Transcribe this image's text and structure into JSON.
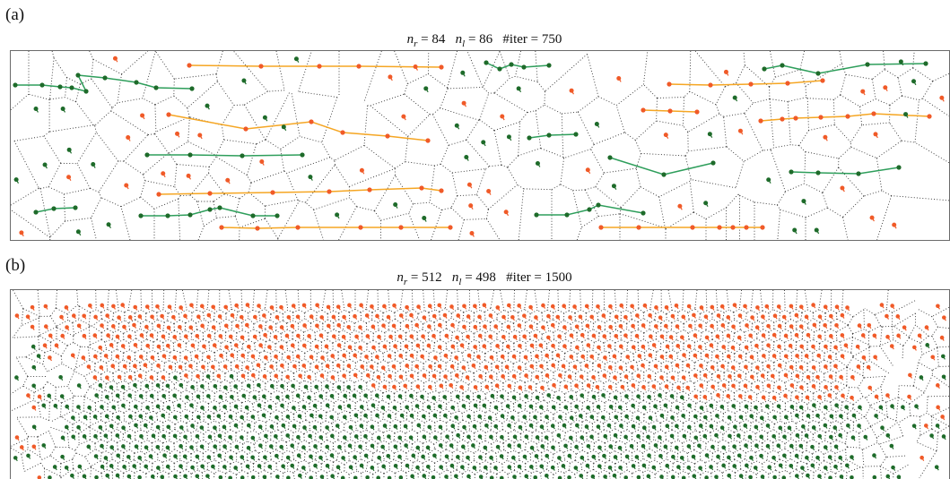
{
  "colors": {
    "right_particle": "#f05a28",
    "left_particle": "#1e6b2a",
    "right_chain": "#f5a623",
    "left_chain": "#2e9e5b",
    "voronoi_edge": "#333333",
    "frame": "#6b6b6b"
  },
  "panels": [
    {
      "label": "(a)",
      "title": {
        "nr_sym": "n",
        "nr_sub": "r",
        "nr_value": "84",
        "nl_sym": "n",
        "nl_sub": "l",
        "nl_value": "86",
        "iter_label": "#iter",
        "iter_value": "750"
      },
      "n_right": 84,
      "n_left": 86,
      "iterations": 750
    },
    {
      "label": "(b)",
      "title": {
        "nr_sym": "n",
        "nr_sub": "r",
        "nr_value": "512",
        "nl_sym": "n",
        "nl_sub": "l",
        "nl_value": "498",
        "iter_label": "#iter",
        "iter_value": "1500"
      },
      "n_right": 512,
      "n_left": 498,
      "iterations": 1500
    }
  ]
}
